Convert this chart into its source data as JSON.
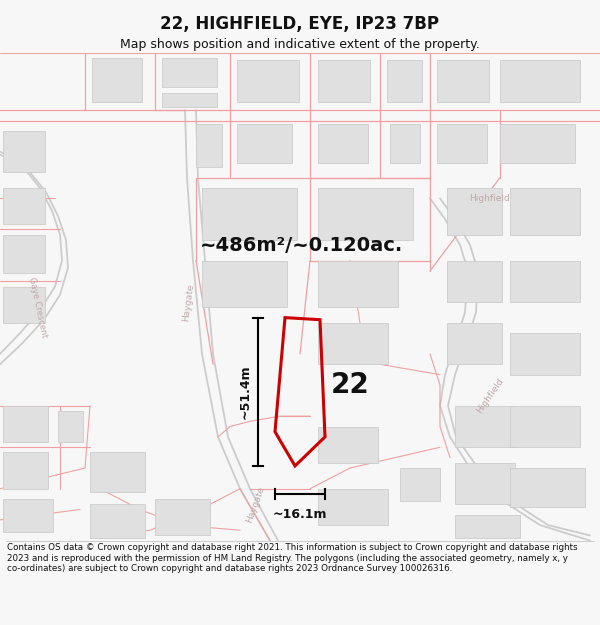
{
  "title": "22, HIGHFIELD, EYE, IP23 7BP",
  "subtitle": "Map shows position and indicative extent of the property.",
  "area_label": "~486m²/~0.120ac.",
  "plot_number": "22",
  "dim_height": "~51.4m",
  "dim_width": "~16.1m",
  "footer": "Contains OS data © Crown copyright and database right 2021. This information is subject to Crown copyright and database rights 2023 and is reproduced with the permission of HM Land Registry. The polygons (including the associated geometry, namely x, y co-ordinates) are subject to Crown copyright and database rights 2023 Ordnance Survey 100026316.",
  "bg_color": "#f7f7f7",
  "map_bg": "#ffffff",
  "road_color": "#f0a0a0",
  "road_gray": "#cccccc",
  "building_fill": "#e0e0e0",
  "building_edge": "#cccccc",
  "plot_color": "#cc0000",
  "dim_color": "#111111",
  "street_label_color": "#c0a8a8",
  "title_color": "#111111",
  "title_fontsize": 12,
  "subtitle_fontsize": 9,
  "area_fontsize": 14,
  "plot_number_fontsize": 20,
  "dim_fontsize": 9
}
